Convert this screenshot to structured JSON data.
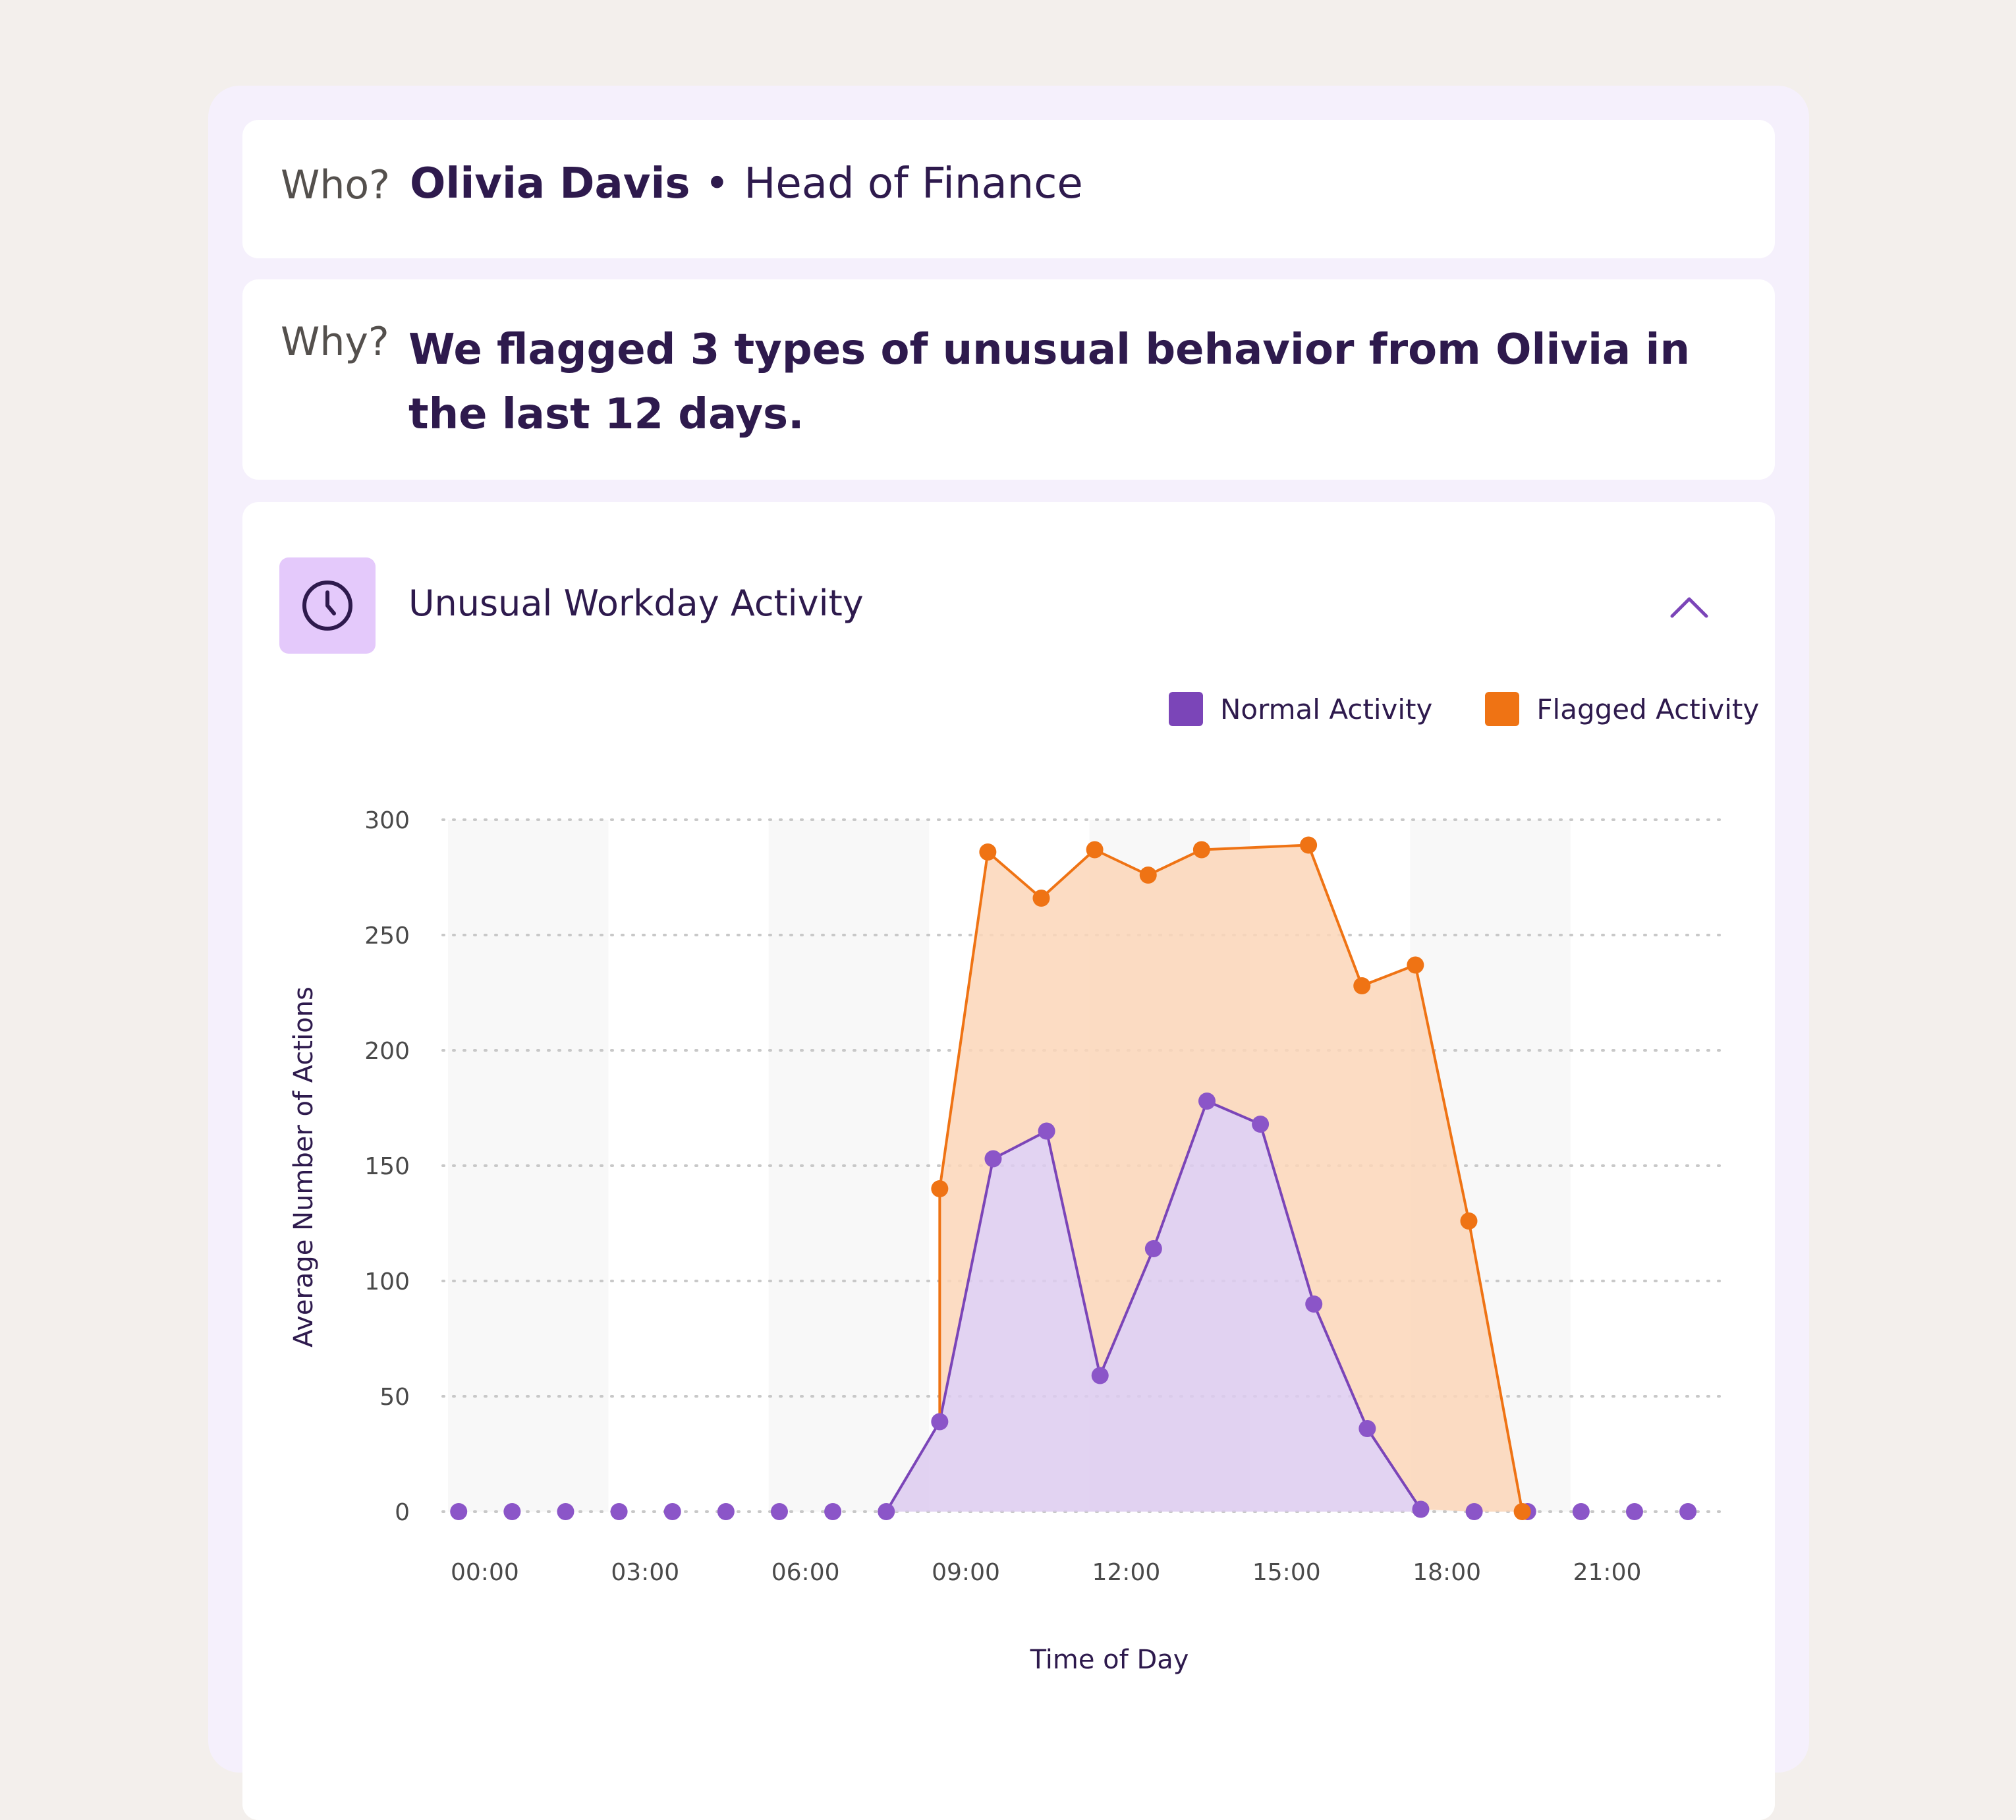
{
  "who": {
    "label": "Who?",
    "name": "Olivia Davis",
    "separator": "•",
    "role": "Head of Finance"
  },
  "why": {
    "label": "Why?",
    "text": "We flagged 3 types of unusual behavior from Olivia in the last 12 days."
  },
  "section": {
    "title": "Unusual Workday Activity",
    "icon": "clock-icon",
    "toggle_icon": "chevron-up-icon"
  },
  "colors": {
    "normal": "#7b45b8",
    "normal_point": "#8b55c8",
    "normal_fill": "#ddcbf0",
    "flagged": "#ef7314",
    "flagged_fill": "#fbd6b9",
    "band": "#f8f8f8",
    "grid": "#c8c8c8"
  },
  "chart_data": {
    "type": "area",
    "xlabel": "Time of Day",
    "ylabel": "Average Number of Actions",
    "ylim": [
      0,
      300
    ],
    "yticks": [
      0,
      50,
      100,
      150,
      200,
      250,
      300
    ],
    "xlim": [
      0,
      24
    ],
    "xticks": [
      {
        "label": "00:00",
        "hour": 0
      },
      {
        "label": "03:00",
        "hour": 3
      },
      {
        "label": "06:00",
        "hour": 6
      },
      {
        "label": "09:00",
        "hour": 9
      },
      {
        "label": "12:00",
        "hour": 12
      },
      {
        "label": "15:00",
        "hour": 15
      },
      {
        "label": "18:00",
        "hour": 18
      },
      {
        "label": "21:00",
        "hour": 21
      }
    ],
    "grid": "horizontal dotted",
    "legend_position": "top-right",
    "series": [
      {
        "name": "Normal Activity",
        "points": [
          [
            0.2,
            0
          ],
          [
            1.2,
            0
          ],
          [
            2.2,
            0
          ],
          [
            3.2,
            0
          ],
          [
            4.2,
            0
          ],
          [
            5.2,
            0
          ],
          [
            6.2,
            0
          ],
          [
            7.2,
            0
          ],
          [
            8.2,
            0
          ],
          [
            9.2,
            39
          ],
          [
            10.2,
            153
          ],
          [
            11.2,
            165
          ],
          [
            12.2,
            59
          ],
          [
            13.2,
            114
          ],
          [
            14.2,
            178
          ],
          [
            15.2,
            168
          ],
          [
            16.2,
            90
          ],
          [
            17.2,
            36
          ],
          [
            18.2,
            1
          ],
          [
            19.2,
            0
          ],
          [
            20.2,
            0
          ],
          [
            21.2,
            0
          ],
          [
            22.2,
            0
          ],
          [
            23.2,
            0
          ]
        ]
      },
      {
        "name": "Flagged Activity",
        "points": [
          [
            9.2,
            140
          ],
          [
            10.1,
            286
          ],
          [
            11.1,
            266
          ],
          [
            12.1,
            287
          ],
          [
            13.1,
            276
          ],
          [
            14.1,
            287
          ],
          [
            16.1,
            289
          ],
          [
            17.1,
            228
          ],
          [
            18.1,
            237
          ],
          [
            19.1,
            126
          ],
          [
            20.1,
            0
          ]
        ]
      }
    ]
  }
}
